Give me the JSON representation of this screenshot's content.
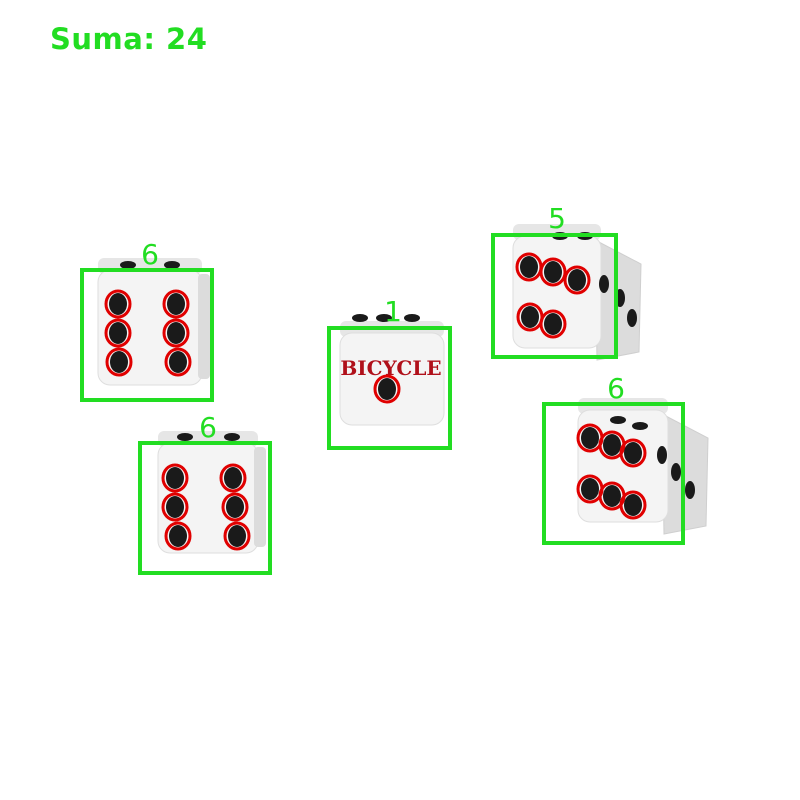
{
  "sum": {
    "text": "Suma: 24"
  },
  "colors": {
    "detection_box": "#22dd22",
    "pip_outline": "#e00000",
    "label_text": "#22dd22",
    "die_face": "#f4f4f4",
    "die_side": "#dcdcdc",
    "pip": "#1a1a1a",
    "logo": "#b0101a"
  },
  "die_logo": "BICYCLE",
  "detections": [
    {
      "label": "6",
      "value": 6
    },
    {
      "label": "6",
      "value": 6
    },
    {
      "label": "1",
      "value": 1
    },
    {
      "label": "5",
      "value": 5
    },
    {
      "label": "6",
      "value": 6
    }
  ]
}
